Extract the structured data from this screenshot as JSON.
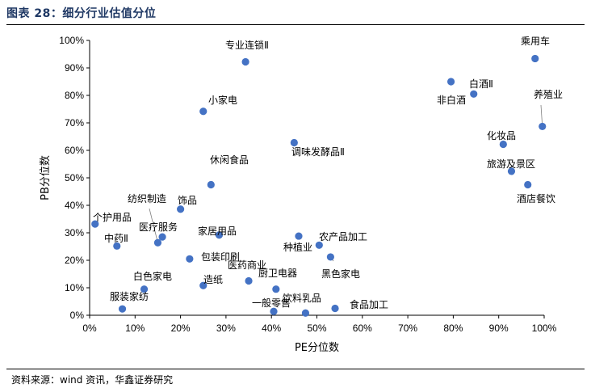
{
  "header": {
    "title": "图表 28：细分行业估值分位"
  },
  "footer": {
    "source": "资料来源：wind 资讯，华鑫证券研究"
  },
  "colors": {
    "point": "#4472c4",
    "title": "#1f3864",
    "leader": "#7f7f7f"
  },
  "chart_data": {
    "type": "scatter",
    "title": "",
    "xlabel": "PE分位数",
    "ylabel": "PB分位数",
    "xlim": [
      0,
      1
    ],
    "ylim": [
      0,
      1
    ],
    "xticks": [
      "0%",
      "10%",
      "20%",
      "30%",
      "40%",
      "50%",
      "60%",
      "70%",
      "80%",
      "90%",
      "100%"
    ],
    "yticks": [
      "0%",
      "10%",
      "20%",
      "30%",
      "40%",
      "50%",
      "60%",
      "70%",
      "80%",
      "90%",
      "100%"
    ],
    "grid": false,
    "points": [
      {
        "name": "专业连锁Ⅱ",
        "x": 0.343,
        "y": 0.922
      },
      {
        "name": "乘用车",
        "x": 0.98,
        "y": 0.934
      },
      {
        "name": "非白酒",
        "x": 0.795,
        "y": 0.85
      },
      {
        "name": "白酒Ⅱ",
        "x": 0.845,
        "y": 0.805
      },
      {
        "name": "养殖业",
        "x": 0.996,
        "y": 0.687
      },
      {
        "name": "小家电",
        "x": 0.25,
        "y": 0.742
      },
      {
        "name": "调味发酵品Ⅱ",
        "x": 0.45,
        "y": 0.628
      },
      {
        "name": "化妆品",
        "x": 0.91,
        "y": 0.622
      },
      {
        "name": "旅游及景区",
        "x": 0.928,
        "y": 0.524
      },
      {
        "name": "酒店餐饮",
        "x": 0.964,
        "y": 0.475
      },
      {
        "name": "休闲食品",
        "x": 0.267,
        "y": 0.475
      },
      {
        "name": "饰品",
        "x": 0.2,
        "y": 0.386
      },
      {
        "name": "个护用品",
        "x": 0.012,
        "y": 0.332
      },
      {
        "name": "纺织制造",
        "x": 0.15,
        "y": 0.264
      },
      {
        "name": "医疗服务",
        "x": 0.16,
        "y": 0.285
      },
      {
        "name": "中药Ⅱ",
        "x": 0.06,
        "y": 0.252
      },
      {
        "name": "家居用品",
        "x": 0.285,
        "y": 0.292
      },
      {
        "name": "种植业",
        "x": 0.46,
        "y": 0.288
      },
      {
        "name": "农产品加工",
        "x": 0.505,
        "y": 0.255
      },
      {
        "name": "包装印刷",
        "x": 0.22,
        "y": 0.205
      },
      {
        "name": "黑色家电",
        "x": 0.53,
        "y": 0.212
      },
      {
        "name": "医药商业",
        "x": 0.35,
        "y": 0.125
      },
      {
        "name": "造纸",
        "x": 0.25,
        "y": 0.108
      },
      {
        "name": "白色家电",
        "x": 0.12,
        "y": 0.095
      },
      {
        "name": "厨卫电器",
        "x": 0.41,
        "y": 0.095
      },
      {
        "name": "服装家纺",
        "x": 0.072,
        "y": 0.023
      },
      {
        "name": "一般零售",
        "x": 0.405,
        "y": 0.014
      },
      {
        "name": "饮料乳品",
        "x": 0.475,
        "y": 0.008
      },
      {
        "name": "食品加工",
        "x": 0.54,
        "y": 0.025
      }
    ]
  }
}
